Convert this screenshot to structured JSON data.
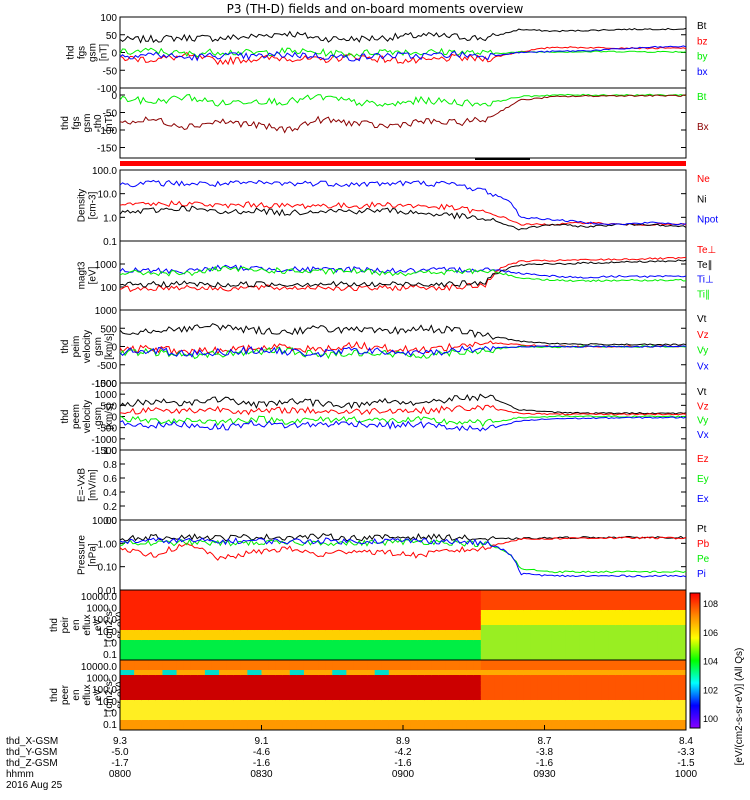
{
  "title": "P3 (TH-D) fields and on-board moments overview",
  "chart_data": [
    {
      "id": "fgs",
      "type": "line",
      "ylabel": [
        "thd",
        "fgs",
        "gsm",
        "[nT]"
      ],
      "ylim": [
        -100,
        100
      ],
      "yticks": [
        "100",
        "50",
        "0",
        "-50",
        "-100"
      ],
      "series": [
        {
          "name": "Bt",
          "color": "#000000",
          "values": [
            35,
            38,
            42,
            40,
            45,
            55,
            40,
            38,
            42,
            48,
            45,
            40,
            65,
            60,
            62,
            65,
            66,
            66
          ]
        },
        {
          "name": "bz",
          "color": "#ff0000",
          "values": [
            -15,
            -20,
            -10,
            -25,
            -18,
            -15,
            -22,
            -10,
            -20,
            -25,
            -15,
            -18,
            2,
            15,
            14,
            13,
            12,
            12
          ]
        },
        {
          "name": "by",
          "color": "#00ee00",
          "values": [
            0,
            5,
            -5,
            3,
            -2,
            4,
            0,
            -5,
            5,
            0,
            2,
            -3,
            1,
            2,
            2,
            3,
            2,
            2
          ]
        },
        {
          "name": "bx",
          "color": "#0000ff",
          "values": [
            -10,
            -5,
            -15,
            -8,
            -12,
            -5,
            -10,
            -15,
            -8,
            -10,
            -5,
            -10,
            0,
            3,
            5,
            10,
            15,
            17
          ]
        }
      ],
      "legend": [
        "Bt",
        "bz",
        "by",
        "bx"
      ]
    },
    {
      "id": "fgs-theta",
      "type": "line",
      "ylabel": [
        "thd",
        "fgs",
        "gsm",
        "-th0",
        "[nT]"
      ],
      "ylim": [
        -180,
        20
      ],
      "yticks": [
        "0",
        "-50",
        "-100",
        "-150"
      ],
      "series": [
        {
          "name": "Bt",
          "color": "#00ee00",
          "values": [
            -10,
            -20,
            -5,
            -25,
            -15,
            -20,
            -5,
            -20,
            -30,
            -15,
            -20,
            -25,
            -5,
            0,
            0,
            0,
            0,
            0
          ]
        },
        {
          "name": "Bx",
          "color": "#8b0000",
          "values": [
            -80,
            -70,
            -90,
            -75,
            -85,
            -100,
            -70,
            -80,
            -90,
            -75,
            -80,
            -70,
            -15,
            -5,
            -3,
            -2,
            -2,
            -2
          ]
        }
      ],
      "legend": [
        "Bt",
        "Bx"
      ]
    },
    {
      "id": "density",
      "type": "line",
      "log": true,
      "ylabel": [
        "Density",
        "[cm-3]"
      ],
      "ylim": [
        0.1,
        100
      ],
      "yticks": [
        "100.0",
        "10.0",
        "1.0",
        "0.1"
      ],
      "series": [
        {
          "name": "Ne",
          "color": "#ff0000",
          "values": [
            3,
            3.5,
            4,
            3,
            3.5,
            3,
            3.2,
            3,
            3.5,
            3,
            2.5,
            1.5,
            0.5,
            0.5,
            0.6,
            0.5,
            0.5,
            0.5
          ]
        },
        {
          "name": "Ni",
          "color": "#000000",
          "values": [
            1.5,
            2,
            2.5,
            1.5,
            2,
            1.5,
            2,
            1.8,
            2,
            1.5,
            1.2,
            0.8,
            0.3,
            0.5,
            0.4,
            0.5,
            0.5,
            0.4
          ]
        },
        {
          "name": "Npot",
          "color": "#0000ff",
          "values": [
            25,
            28,
            27,
            25,
            28,
            27,
            28,
            25,
            27,
            28,
            25,
            12,
            1,
            0.8,
            0.6,
            0.5,
            0.6,
            0.5
          ]
        }
      ],
      "legend": [
        "Ne",
        "Ni",
        "Npot"
      ]
    },
    {
      "id": "temp",
      "type": "line",
      "log": true,
      "ylabel": [
        "magt3",
        "[eV]"
      ],
      "ylim": [
        10,
        10000
      ],
      "yticks": [
        "1000",
        "100"
      ],
      "series": [
        {
          "name": "Te⊥",
          "color": "#ff0000",
          "values": [
            80,
            90,
            100,
            85,
            95,
            90,
            100,
            85,
            90,
            100,
            95,
            120,
            1300,
            1400,
            1500,
            1600,
            1700,
            1800
          ]
        },
        {
          "name": "Te∥",
          "color": "#000000",
          "values": [
            120,
            130,
            140,
            120,
            135,
            130,
            140,
            125,
            130,
            140,
            135,
            150,
            900,
            1000,
            1100,
            1200,
            1300,
            1400
          ]
        },
        {
          "name": "Ti⊥",
          "color": "#0000ff",
          "values": [
            500,
            520,
            480,
            700,
            650,
            600,
            550,
            600,
            520,
            500,
            550,
            600,
            400,
            300,
            250,
            300,
            280,
            300
          ]
        },
        {
          "name": "Ti∥",
          "color": "#00ee00",
          "values": [
            400,
            420,
            380,
            600,
            550,
            500,
            450,
            500,
            420,
            400,
            450,
            500,
            250,
            200,
            180,
            200,
            190,
            200
          ]
        }
      ],
      "legend": [
        "Te⊥",
        "Te∥",
        "Ti⊥",
        "Ti∥"
      ]
    },
    {
      "id": "peim",
      "type": "line",
      "ylabel": [
        "thd",
        "peim",
        "velocity",
        "gsm",
        "[km/s]"
      ],
      "ylim": [
        -1000,
        1000
      ],
      "yticks": [
        "1000",
        "500",
        "0",
        "-500",
        "-1000"
      ],
      "series": [
        {
          "name": "Vt",
          "color": "#000000",
          "values": [
            400,
            450,
            500,
            550,
            450,
            400,
            500,
            450,
            400,
            500,
            450,
            300,
            150,
            80,
            60,
            60,
            50,
            50
          ]
        },
        {
          "name": "Vz",
          "color": "#ff0000",
          "values": [
            -100,
            -50,
            -150,
            -100,
            -50,
            0,
            -100,
            50,
            -50,
            -100,
            0,
            100,
            50,
            0,
            0,
            0,
            0,
            0
          ]
        },
        {
          "name": "Vy",
          "color": "#00ee00",
          "values": [
            -200,
            -150,
            -250,
            -200,
            -150,
            -100,
            -250,
            -150,
            -200,
            -250,
            -150,
            -100,
            0,
            -20,
            0,
            0,
            0,
            0
          ]
        },
        {
          "name": "Vx",
          "color": "#0000ff",
          "values": [
            -150,
            -100,
            -200,
            -150,
            -100,
            -150,
            -200,
            -100,
            -150,
            -200,
            -100,
            -50,
            0,
            0,
            0,
            0,
            0,
            0
          ]
        }
      ],
      "legend": [
        "Vt",
        "Vz",
        "Vy",
        "Vx"
      ]
    },
    {
      "id": "peem",
      "type": "line",
      "ylabel": [
        "thd",
        "peem",
        "velocity",
        "gsm",
        "[km/s]"
      ],
      "ylim": [
        -1500,
        1500
      ],
      "yticks": [
        "1500",
        "1000",
        "500",
        "0",
        "-500",
        "-1000",
        "-1500"
      ],
      "series": [
        {
          "name": "Vt",
          "color": "#000000",
          "values": [
            500,
            700,
            600,
            800,
            500,
            700,
            600,
            500,
            700,
            600,
            800,
            900,
            300,
            200,
            150,
            150,
            150,
            150
          ]
        },
        {
          "name": "Vz",
          "color": "#ff0000",
          "values": [
            200,
            300,
            250,
            350,
            200,
            300,
            250,
            200,
            300,
            250,
            350,
            400,
            150,
            100,
            100,
            100,
            100,
            100
          ]
        },
        {
          "name": "Vy",
          "color": "#00ee00",
          "values": [
            -100,
            -200,
            -150,
            -250,
            -100,
            -200,
            -150,
            -100,
            -200,
            -150,
            -250,
            -300,
            -50,
            0,
            0,
            0,
            0,
            0
          ]
        },
        {
          "name": "Vx",
          "color": "#0000ff",
          "values": [
            -300,
            -400,
            -350,
            -500,
            -300,
            -400,
            -350,
            -300,
            -400,
            -350,
            -500,
            -600,
            -200,
            -100,
            -80,
            -60,
            -50,
            -50
          ]
        }
      ],
      "legend": [
        "Vt",
        "Vz",
        "Vy",
        "Vx"
      ]
    },
    {
      "id": "efield",
      "type": "line",
      "ylabel": [
        "E=-VxB",
        "[mV/m]"
      ],
      "ylim": [
        0,
        1
      ],
      "yticks": [
        "1.0",
        "0.8",
        "0.6",
        "0.4",
        "0.2",
        "0.0"
      ],
      "series": [],
      "legend": [
        "Ez",
        "Ey",
        "Ex"
      ],
      "legend_colors": [
        "#ff0000",
        "#00ee00",
        "#0000ff"
      ]
    },
    {
      "id": "pressure",
      "type": "line",
      "log": true,
      "ylabel": [
        "Pressure",
        "[nPa]"
      ],
      "ylim": [
        0.01,
        10
      ],
      "yticks": [
        "10.00",
        "1.00",
        "0.10",
        "0.01"
      ],
      "series": [
        {
          "name": "Pt",
          "color": "#000000",
          "values": [
            1.6,
            1.8,
            2,
            1.7,
            1.9,
            1.8,
            2,
            1.7,
            1.8,
            1.9,
            1.8,
            1.5,
            1.6,
            1.7,
            1.8,
            1.8,
            1.8,
            1.8
          ]
        },
        {
          "name": "Pb",
          "color": "#ff0000",
          "values": [
            0.5,
            0.3,
            0.8,
            0.2,
            0.4,
            0.6,
            0.3,
            0.5,
            0.4,
            0.3,
            0.5,
            0.6,
            1.5,
            1.6,
            1.7,
            1.7,
            1.7,
            1.7
          ]
        },
        {
          "name": "Pe",
          "color": "#00ee00",
          "values": [
            1,
            1,
            1.1,
            1,
            1.1,
            1,
            1.1,
            1,
            1.1,
            1.2,
            1.1,
            0.9,
            0.08,
            0.06,
            0.06,
            0.06,
            0.06,
            0.06
          ]
        },
        {
          "name": "Pi",
          "color": "#0000ff",
          "values": [
            1.2,
            1.3,
            1.3,
            1.2,
            1.3,
            1.2,
            1.3,
            1.2,
            1.3,
            1.3,
            1.2,
            1.0,
            0.05,
            0.04,
            0.04,
            0.04,
            0.04,
            0.04
          ]
        }
      ],
      "legend": [
        "Pt",
        "Pb",
        "Pe",
        "Pi"
      ]
    },
    {
      "id": "peir",
      "type": "heatmap",
      "ylabel": [
        "thd",
        "peir",
        "en",
        "eflux",
        "eV",
        "(cm2-s-",
        "sr-eV)"
      ],
      "yticks": [
        "10000.0",
        "1000.0",
        "100.0",
        "10.0",
        "1.0",
        "0.1"
      ]
    },
    {
      "id": "peer",
      "type": "heatmap",
      "ylabel": [
        "thd",
        "peer",
        "en",
        "eflux",
        "eV",
        "(cm2-s-",
        "sr-eV)"
      ],
      "yticks": [
        "10000.0",
        "1000.0",
        "100.0",
        "10.0",
        "1.0",
        "0.1"
      ]
    }
  ],
  "colorbar": {
    "label": "[eV/(cm2-s-sr-eV)] (All Qs)",
    "ticks": [
      "10^8",
      "10^6",
      "10^4",
      "10^2",
      "10^0"
    ]
  },
  "xaxis": {
    "tick_labels": [
      "0800",
      "0830",
      "0900",
      "0930",
      "1000"
    ],
    "rows": [
      {
        "name": "thd_X-GSM",
        "values": [
          "9.3",
          "9.1",
          "8.9",
          "8.7",
          "8.4"
        ]
      },
      {
        "name": "thd_Y-GSM",
        "values": [
          "-5.0",
          "-4.6",
          "-4.2",
          "-3.8",
          "-3.3"
        ]
      },
      {
        "name": "thd_Z-GSM",
        "values": [
          "-1.7",
          "-1.6",
          "-1.6",
          "-1.6",
          "-1.5"
        ]
      },
      {
        "name": "hhmm",
        "values": [
          "0800",
          "0830",
          "0900",
          "0930",
          "1000"
        ]
      }
    ],
    "date": "2016 Aug 25"
  }
}
